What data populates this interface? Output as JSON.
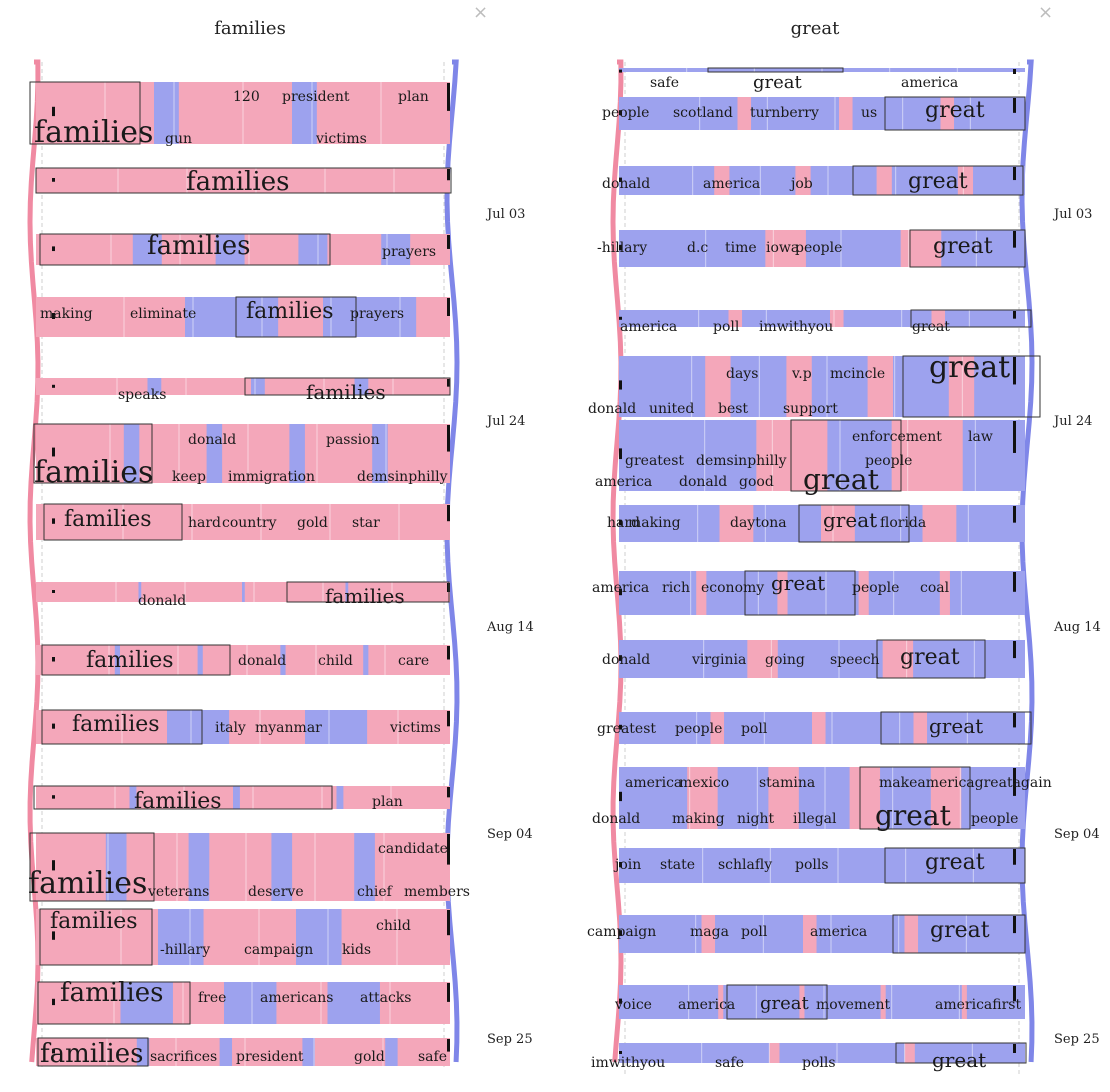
{
  "colors": {
    "pink": "#f4a7ba",
    "blue": "#9da2ee",
    "stream_pink": "#f08aa2",
    "stream_blue": "#7f86e8",
    "frame": "#333333"
  },
  "panels": [
    {
      "id": "left",
      "title": "families",
      "close_glyph": "×",
      "dates": [
        "Jul 03",
        "Jul 24",
        "Aug 14",
        "Sep 04",
        "Sep 25"
      ],
      "rows": [
        {
          "words": [
            "families",
            "gun",
            "120",
            "president",
            "plan",
            "victims"
          ]
        },
        {
          "words": [
            "families"
          ]
        },
        {
          "words": [
            "families",
            "prayers"
          ]
        },
        {
          "words": [
            "making",
            "eliminate",
            "families",
            "prayers"
          ]
        },
        {
          "words": [
            "speaks",
            "families"
          ]
        },
        {
          "words": [
            "families",
            "keep",
            "immigration",
            "demsinphilly",
            "donald",
            "passion"
          ]
        },
        {
          "words": [
            "families",
            "hard",
            "country",
            "gold",
            "star"
          ]
        },
        {
          "words": [
            "donald",
            "families"
          ]
        },
        {
          "words": [
            "families",
            "donald",
            "child",
            "care"
          ]
        },
        {
          "words": [
            "families",
            "italy",
            "myanmar",
            "victims"
          ]
        },
        {
          "words": [
            "families",
            "plan"
          ]
        },
        {
          "words": [
            "families",
            "veterans",
            "deserve",
            "chief",
            "members",
            "candidate"
          ]
        },
        {
          "words": [
            "families",
            "-hillary",
            "campaign",
            "kids",
            "child"
          ]
        },
        {
          "words": [
            "families",
            "free",
            "americans",
            "attacks"
          ]
        },
        {
          "words": [
            "families",
            "sacrifices",
            "president",
            "gold",
            "safe"
          ]
        }
      ]
    },
    {
      "id": "right",
      "title": "great",
      "close_glyph": "×",
      "dates": [
        "Jul 03",
        "Jul 24",
        "Aug 14",
        "Sep 04",
        "Sep 25"
      ],
      "rows": [
        {
          "words": [
            "safe",
            "great",
            "america"
          ]
        },
        {
          "words": [
            "people",
            "scotland",
            "turnberry",
            "us",
            "great"
          ]
        },
        {
          "words": [
            "donald",
            "america",
            "job",
            "great"
          ]
        },
        {
          "words": [
            "-hillary",
            "d.c",
            "time",
            "iowa",
            "people",
            "great"
          ]
        },
        {
          "words": [
            "america",
            "poll",
            "imwithyou",
            "great"
          ]
        },
        {
          "words": [
            "days",
            "v.p",
            "mcincle",
            "great",
            "donald",
            "united",
            "best",
            "support"
          ]
        },
        {
          "words": [
            "greatest",
            "demsinphilly",
            "people",
            "enforcement",
            "law",
            "america",
            "donald",
            "good",
            "great"
          ]
        },
        {
          "words": [
            "hard",
            "making",
            "daytona",
            "great",
            "florida"
          ]
        },
        {
          "words": [
            "america",
            "rich",
            "economy",
            "great",
            "people",
            "coal"
          ]
        },
        {
          "words": [
            "donald",
            "virginia",
            "going",
            "speech",
            "great"
          ]
        },
        {
          "words": [
            "greatest",
            "people",
            "poll",
            "great"
          ]
        },
        {
          "words": [
            "america",
            "mexico",
            "stamina",
            "makeamericagreatagain",
            "donald",
            "making",
            "night",
            "illegal",
            "great",
            "people"
          ]
        },
        {
          "words": [
            "join",
            "state",
            "schlafly",
            "polls",
            "great"
          ]
        },
        {
          "words": [
            "campaign",
            "maga",
            "poll",
            "america",
            "great"
          ]
        },
        {
          "words": [
            "voice",
            "america",
            "great",
            "movement",
            "americafirst"
          ]
        },
        {
          "words": [
            "imwithyou",
            "safe",
            "polls",
            "great"
          ]
        }
      ]
    }
  ],
  "chart_data": [
    {
      "type": "stream-wordcloud",
      "title": "families",
      "x_axis": "time",
      "time_labels": [
        "Jul 03",
        "Jul 24",
        "Aug 14",
        "Sep 04",
        "Sep 25"
      ],
      "series": [
        {
          "name": "",
          "color": "#f4a7ba",
          "share_by_row": [
            0.88,
            1.0,
            0.72,
            0.55,
            0.9,
            0.85,
            1.0,
            0.98,
            0.95,
            0.7,
            0.95,
            0.8,
            0.78,
            0.62,
            0.88
          ]
        },
        {
          "name": "",
          "color": "#9da2ee",
          "share_by_row": [
            0.12,
            0.0,
            0.28,
            0.45,
            0.1,
            0.15,
            0.0,
            0.02,
            0.05,
            0.3,
            0.05,
            0.2,
            0.22,
            0.38,
            0.12
          ]
        }
      ]
    },
    {
      "type": "stream-wordcloud",
      "title": "great",
      "x_axis": "time",
      "time_labels": [
        "Jul 03",
        "Jul 24",
        "Aug 14",
        "Sep 04",
        "Sep 25"
      ],
      "series": [
        {
          "name": "",
          "color": "#f4a7ba",
          "share_by_row": [
            0.0,
            0.1,
            0.15,
            0.2,
            0.1,
            0.25,
            0.35,
            0.25,
            0.1,
            0.15,
            0.1,
            0.3,
            0.0,
            0.1,
            0.05,
            0.05
          ]
        },
        {
          "name": "",
          "color": "#9da2ee",
          "share_by_row": [
            1.0,
            0.9,
            0.85,
            0.8,
            0.9,
            0.75,
            0.65,
            0.75,
            0.9,
            0.85,
            0.9,
            0.7,
            1.0,
            0.9,
            0.95,
            0.95
          ]
        }
      ]
    }
  ]
}
